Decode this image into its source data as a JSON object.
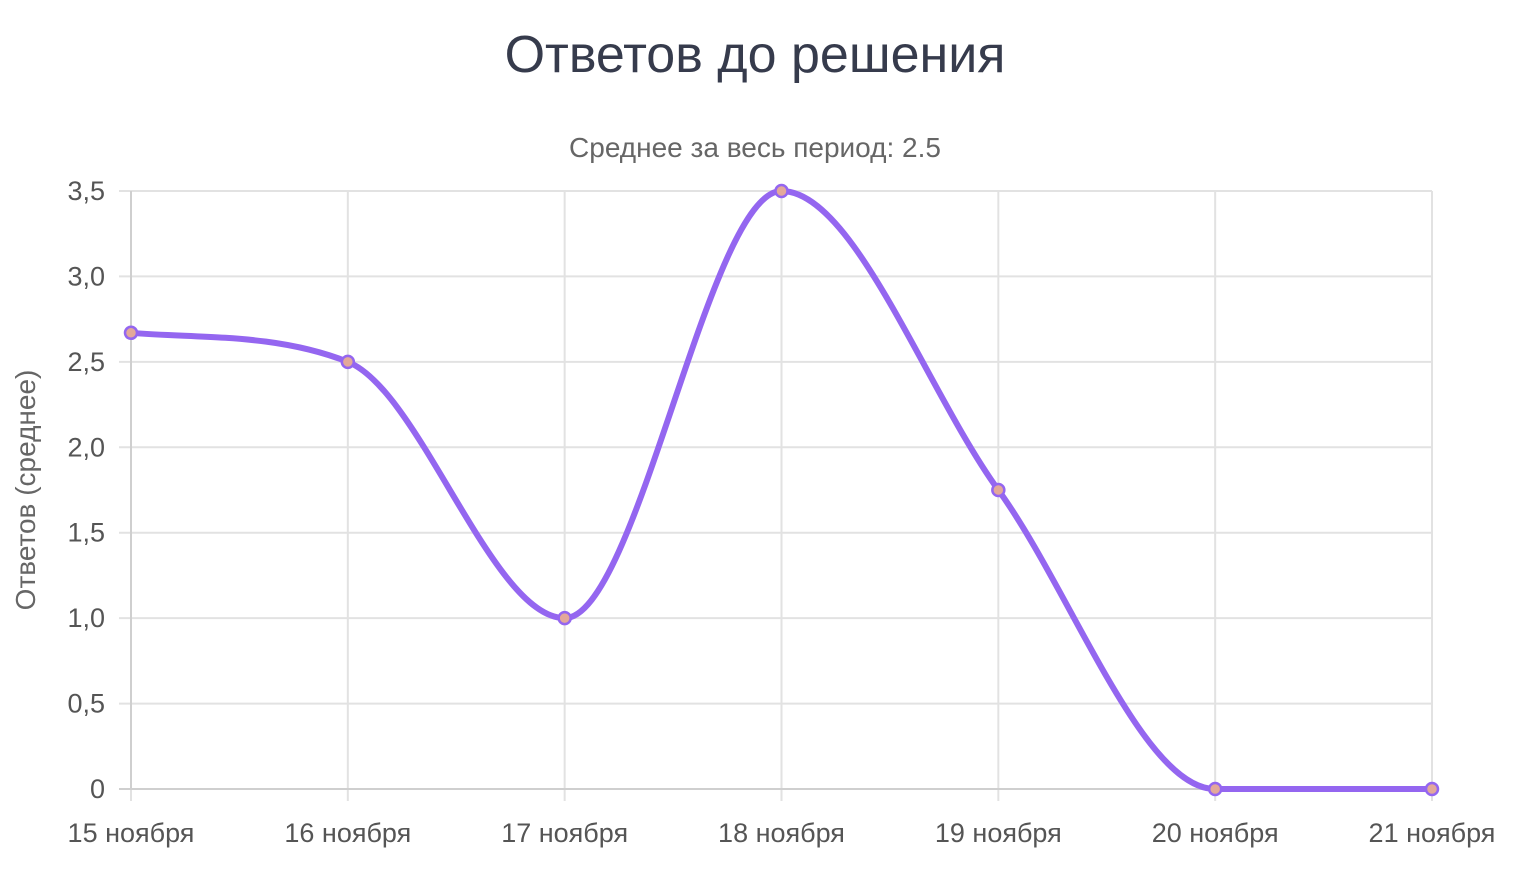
{
  "chart_data": {
    "type": "line",
    "title": "Ответов до решения",
    "subtitle": "Среднее за весь период: 2.5",
    "xlabel": "",
    "ylabel": "Ответов (среднее)",
    "categories": [
      "15 ноября",
      "16 ноября",
      "17 ноября",
      "18 ноября",
      "19 ноября",
      "20 ноября",
      "21 ноября"
    ],
    "series": [
      {
        "values": [
          2.67,
          2.5,
          1.0,
          3.5,
          1.75,
          0,
          0
        ],
        "color": "#9466f0"
      }
    ],
    "yticks": [
      {
        "value": 0,
        "label": "0"
      },
      {
        "value": 0.5,
        "label": "0,5"
      },
      {
        "value": 1.0,
        "label": "1,0"
      },
      {
        "value": 1.5,
        "label": "1,5"
      },
      {
        "value": 2.0,
        "label": "2,0"
      },
      {
        "value": 2.5,
        "label": "2,5"
      },
      {
        "value": 3.0,
        "label": "3,0"
      },
      {
        "value": 3.5,
        "label": "3,5"
      }
    ],
    "ylim": [
      0,
      3.5
    ],
    "grid": true,
    "point_fill": "#e3a89a",
    "legend": "none"
  }
}
